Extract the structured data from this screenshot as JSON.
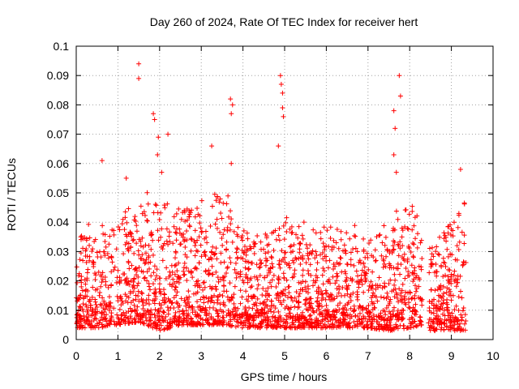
{
  "chart_data": {
    "type": "scatter",
    "title": "Day 260 of 2024, Rate Of TEC Index for receiver hert",
    "xlabel": "GPS time / hours",
    "ylabel": "ROTI / TECUs",
    "xlim": [
      0,
      10
    ],
    "ylim": [
      0,
      0.1
    ],
    "x_ticks": [
      "0",
      "1",
      "2",
      "3",
      "4",
      "5",
      "6",
      "7",
      "8",
      "9",
      "10"
    ],
    "y_ticks": [
      "0",
      "0.01",
      "0.02",
      "0.03",
      "0.04",
      "0.05",
      "0.06",
      "0.07",
      "0.08",
      "0.09",
      "0.1"
    ],
    "grid": true,
    "marker": "+",
    "color": "#ff0000",
    "coverage": {
      "x_range": [
        0,
        9.35
      ],
      "gap": [
        8.3,
        8.45
      ]
    },
    "highlight_points": [
      [
        1.5,
        0.094
      ],
      [
        1.5,
        0.089
      ],
      [
        1.85,
        0.077
      ],
      [
        1.88,
        0.075
      ],
      [
        1.97,
        0.069
      ],
      [
        2.2,
        0.07
      ],
      [
        3.25,
        0.066
      ],
      [
        3.7,
        0.082
      ],
      [
        3.75,
        0.08
      ],
      [
        3.72,
        0.077
      ],
      [
        4.9,
        0.09
      ],
      [
        4.92,
        0.087
      ],
      [
        4.95,
        0.084
      ],
      [
        4.95,
        0.079
      ],
      [
        4.97,
        0.076
      ],
      [
        7.75,
        0.09
      ],
      [
        7.78,
        0.083
      ],
      [
        7.62,
        0.078
      ],
      [
        7.65,
        0.072
      ],
      [
        7.62,
        0.063
      ],
      [
        7.68,
        0.057
      ],
      [
        0.62,
        0.061
      ],
      [
        1.95,
        0.063
      ],
      [
        3.72,
        0.06
      ],
      [
        9.22,
        0.058
      ],
      [
        4.85,
        0.066
      ],
      [
        2.05,
        0.057
      ],
      [
        1.2,
        0.055
      ]
    ],
    "envelope": [
      {
        "x": 0.0,
        "lo": 0.004,
        "hi": 0.033
      },
      {
        "x": 0.5,
        "lo": 0.004,
        "hi": 0.038
      },
      {
        "x": 1.0,
        "lo": 0.005,
        "hi": 0.04
      },
      {
        "x": 1.5,
        "lo": 0.006,
        "hi": 0.045
      },
      {
        "x": 2.0,
        "lo": 0.003,
        "hi": 0.05
      },
      {
        "x": 2.5,
        "lo": 0.005,
        "hi": 0.045
      },
      {
        "x": 3.0,
        "lo": 0.005,
        "hi": 0.045
      },
      {
        "x": 3.5,
        "lo": 0.005,
        "hi": 0.05
      },
      {
        "x": 4.0,
        "lo": 0.004,
        "hi": 0.035
      },
      {
        "x": 4.5,
        "lo": 0.004,
        "hi": 0.035
      },
      {
        "x": 5.0,
        "lo": 0.004,
        "hi": 0.04
      },
      {
        "x": 5.5,
        "lo": 0.004,
        "hi": 0.038
      },
      {
        "x": 6.0,
        "lo": 0.004,
        "hi": 0.035
      },
      {
        "x": 6.5,
        "lo": 0.004,
        "hi": 0.038
      },
      {
        "x": 7.0,
        "lo": 0.004,
        "hi": 0.033
      },
      {
        "x": 7.5,
        "lo": 0.003,
        "hi": 0.04
      },
      {
        "x": 8.0,
        "lo": 0.004,
        "hi": 0.045
      },
      {
        "x": 8.3,
        "lo": 0.005,
        "hi": 0.04
      },
      {
        "x": 8.5,
        "lo": 0.003,
        "hi": 0.03
      },
      {
        "x": 9.0,
        "lo": 0.003,
        "hi": 0.04
      },
      {
        "x": 9.35,
        "lo": 0.003,
        "hi": 0.045
      }
    ]
  }
}
